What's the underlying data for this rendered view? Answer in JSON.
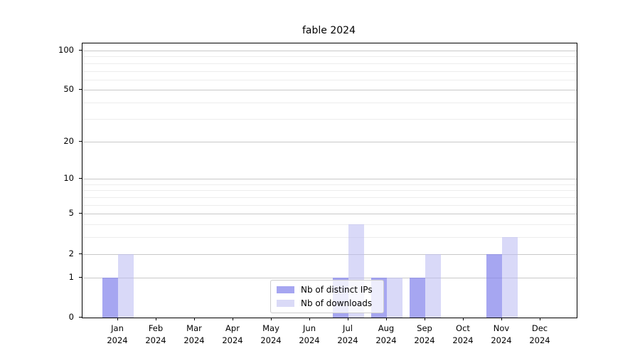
{
  "title": "fable 2024",
  "colors": {
    "axis": "#000000",
    "grid_major": "#c9c9c9",
    "grid_minor": "#ededed",
    "legend_border": "#cccccc",
    "series_ips": "#a6a6f1",
    "series_downloads": "#dadaf7"
  },
  "legend": {
    "items": [
      {
        "label": "Nb of distinct IPs",
        "color": "#a6a6f1"
      },
      {
        "label": "Nb of downloads",
        "color": "#dadaf7"
      }
    ]
  },
  "chart_data": {
    "type": "bar",
    "title": "fable 2024",
    "categories": [
      "Jan",
      "Feb",
      "Mar",
      "Apr",
      "May",
      "Jun",
      "Jul",
      "Aug",
      "Sep",
      "Oct",
      "Nov",
      "Dec"
    ],
    "x_tick_second_line": "2024",
    "series": [
      {
        "name": "Nb of distinct IPs",
        "color": "#a6a6f1",
        "fill": "rgba(128,128,235,0.70)",
        "values": [
          1,
          0,
          0,
          0,
          0,
          0,
          1,
          1,
          1,
          0,
          2,
          0
        ]
      },
      {
        "name": "Nb of downloads",
        "color": "#dadaf7",
        "fill": "rgba(185,185,242,0.55)",
        "values": [
          2,
          0,
          0,
          0,
          0,
          0,
          4,
          1,
          2,
          0,
          3,
          0
        ]
      }
    ],
    "xlabel": "",
    "ylabel": "",
    "y_scale": "log1p",
    "y_ticks": [
      100,
      50,
      20,
      10,
      5,
      2,
      1,
      0
    ],
    "y_minor_ticks": [
      3,
      4,
      6,
      7,
      8,
      9,
      30,
      40,
      60,
      70,
      80,
      90
    ],
    "y_axis_max": 113,
    "ylim": [
      0,
      113
    ],
    "grid": true,
    "legend_position": "inside-bottom-center"
  }
}
